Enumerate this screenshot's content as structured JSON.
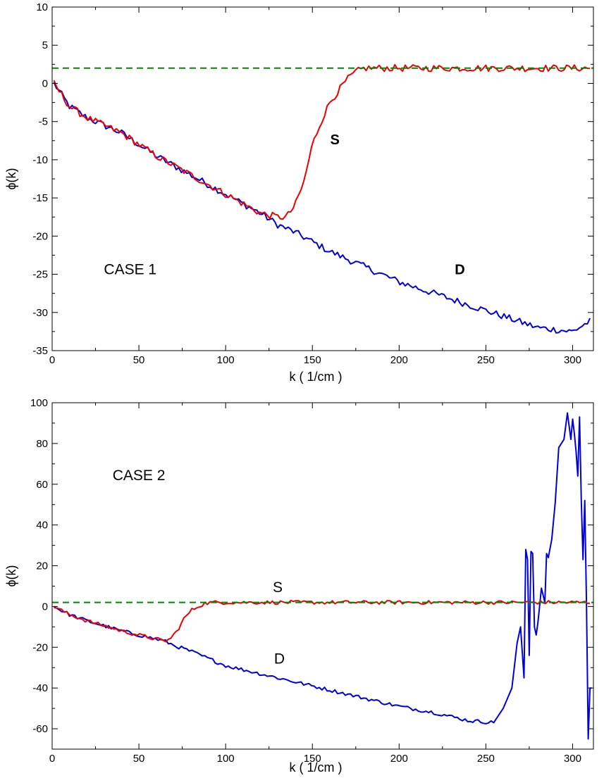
{
  "chart_data": [
    {
      "type": "line",
      "xlabel": "k ( 1/cm )",
      "ylabel": "ϕ(k)",
      "xlim": [
        0,
        312
      ],
      "ylim": [
        -35,
        10
      ],
      "xticks": [
        0,
        50,
        100,
        150,
        200,
        250,
        300
      ],
      "xtick_labels": [
        "0",
        "50",
        "100",
        "150",
        "200",
        "250",
        "300"
      ],
      "yticks": [
        -35,
        -30,
        -25,
        -20,
        -15,
        -10,
        -5,
        0,
        5,
        10
      ],
      "ytick_labels": [
        "-35",
        "-30",
        "-25",
        "-20",
        "-15",
        "-10",
        "-5",
        "0",
        "5",
        "10"
      ],
      "annotations": [
        {
          "text": "CASE 1",
          "x": 45,
          "y": -25,
          "bold": false
        },
        {
          "text": "S",
          "x": 163,
          "y": -8,
          "bold": true
        },
        {
          "text": "D",
          "x": 235,
          "y": -25,
          "bold": true
        }
      ],
      "series": [
        {
          "color": "#0000dd",
          "style": "solid",
          "noise": 0.45,
          "x": [
            1,
            10,
            20,
            40,
            60,
            80,
            100,
            120,
            130,
            140,
            160,
            180,
            200,
            220,
            240,
            260,
            280,
            300,
            311
          ],
          "y": [
            0,
            -3,
            -4.5,
            -6.5,
            -9.5,
            -12,
            -14.5,
            -17,
            -18.5,
            -19.5,
            -22,
            -24,
            -26,
            -27.5,
            -29,
            -30.5,
            -32,
            -32.5,
            -31
          ]
        },
        {
          "color": "#ee0000",
          "style": "solid",
          "noise": 0.45,
          "x": [
            1,
            10,
            20,
            40,
            60,
            80,
            100,
            120,
            130,
            135,
            140,
            145,
            150,
            155,
            160,
            165,
            170,
            175,
            180,
            200,
            220,
            240,
            260,
            280,
            300,
            310,
            311
          ],
          "y": [
            0,
            -3,
            -4.5,
            -6.5,
            -9.5,
            -12,
            -14.5,
            -17,
            -17.5,
            -17.5,
            -16,
            -13,
            -8,
            -5,
            -2.5,
            -1,
            0.5,
            1.5,
            2,
            2,
            2,
            2,
            2,
            2,
            2,
            2,
            1.2
          ]
        },
        {
          "color": "#008800",
          "style": "dashed",
          "noise": 0,
          "x": [
            0,
            312
          ],
          "y": [
            2,
            2
          ]
        }
      ]
    },
    {
      "type": "line",
      "xlabel": "k ( 1/cm )",
      "ylabel": "ϕ(k)",
      "xlim": [
        0,
        312
      ],
      "ylim": [
        -70,
        100
      ],
      "xticks": [
        0,
        50,
        100,
        150,
        200,
        250,
        300
      ],
      "xtick_labels": [
        "0",
        "50",
        "100",
        "150",
        "200",
        "250",
        "300"
      ],
      "yticks": [
        -60,
        -40,
        -20,
        0,
        20,
        40,
        60,
        80,
        100
      ],
      "ytick_labels": [
        "-60",
        "-40",
        "-20",
        "0",
        "20",
        "40",
        "60",
        "80",
        "100"
      ],
      "annotations": [
        {
          "text": "CASE 2",
          "x": 50,
          "y": 62,
          "bold": false
        },
        {
          "text": "S",
          "x": 130,
          "y": 7,
          "bold": false
        },
        {
          "text": "D",
          "x": 131,
          "y": -28,
          "bold": false
        }
      ],
      "series": [
        {
          "color": "#0000dd",
          "style": "solid",
          "noise": 0.9,
          "x": [
            1,
            10,
            20,
            40,
            60,
            65,
            70,
            80,
            100,
            120,
            140,
            160,
            180,
            200,
            220,
            240,
            255,
            260,
            265,
            268,
            270,
            272,
            273,
            274,
            275,
            276,
            277,
            278,
            279,
            280,
            282,
            284,
            285,
            286,
            288,
            290,
            292,
            295,
            297,
            299,
            300,
            301,
            302,
            303,
            304,
            305,
            306,
            307,
            308,
            309,
            310,
            311
          ],
          "y": [
            0,
            -4,
            -7,
            -12,
            -16,
            -17,
            -19,
            -22,
            -29,
            -33,
            -37,
            -41,
            -45,
            -49,
            -52,
            -56,
            -57,
            -50,
            -40,
            -18,
            -10,
            -35,
            28,
            23,
            -24,
            27,
            26,
            -10,
            -14,
            -8,
            9,
            2,
            26,
            24,
            33,
            51,
            78,
            82,
            95,
            82,
            92,
            85,
            76,
            64,
            93,
            52,
            23,
            52,
            0,
            -65,
            -40,
            -40
          ]
        },
        {
          "color": "#ee0000",
          "style": "solid",
          "noise": 0.9,
          "x": [
            1,
            10,
            20,
            40,
            60,
            65,
            68,
            72,
            76,
            80,
            84,
            88,
            92,
            100,
            150,
            200,
            250,
            300,
            311
          ],
          "y": [
            0,
            -4,
            -7,
            -12,
            -16,
            -17,
            -16,
            -12,
            -6,
            -2,
            0,
            1.5,
            2,
            2,
            2,
            2,
            2,
            2,
            2
          ]
        },
        {
          "color": "#008800",
          "style": "dashed",
          "noise": 0,
          "x": [
            0,
            312
          ],
          "y": [
            2,
            2
          ]
        }
      ]
    }
  ]
}
